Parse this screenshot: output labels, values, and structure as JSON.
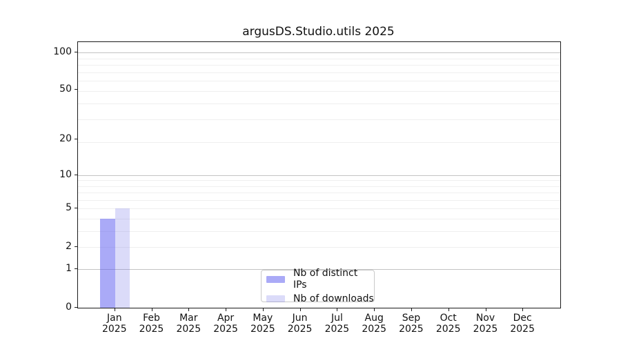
{
  "title": "argusDS.Studio.utils 2025",
  "chart_data": {
    "type": "bar",
    "title": "argusDS.Studio.utils 2025",
    "categories": [
      "Jan",
      "Feb",
      "Mar",
      "Apr",
      "May",
      "Jun",
      "Jul",
      "Aug",
      "Sep",
      "Oct",
      "Nov",
      "Dec"
    ],
    "category_year": "2025",
    "series": [
      {
        "name": "Nb of distinct IPs",
        "color_hex": "#aaaaf5",
        "color_rgba": "rgba(85,85,240,0.5)",
        "values": [
          4,
          0,
          0,
          0,
          0,
          0,
          0,
          0,
          0,
          0,
          0,
          0
        ]
      },
      {
        "name": "Nb of downloads",
        "color_hex": "#dbdbf8",
        "color_rgba": "rgba(110,110,230,0.25)",
        "values": [
          5,
          0,
          0,
          0,
          0,
          0,
          0,
          0,
          0,
          0,
          0,
          0
        ]
      }
    ],
    "yscale": "log1p",
    "ylabel": "",
    "xlabel": "",
    "ylim": [
      0,
      120
    ],
    "yticks": [
      0,
      1,
      2,
      5,
      10,
      20,
      50,
      100
    ],
    "major_grid_values": [
      1,
      10,
      100
    ],
    "minor_grid_w": [
      3,
      4,
      5,
      6,
      7,
      8,
      9,
      10,
      20,
      30,
      40,
      50,
      60,
      70,
      80,
      90
    ],
    "grid_minor_color": "#efefef",
    "grid_major_color": "#c3c3c3",
    "legend_position": "lower center",
    "legend_items": [
      "Nb of distinct IPs",
      "Nb of downloads"
    ]
  }
}
